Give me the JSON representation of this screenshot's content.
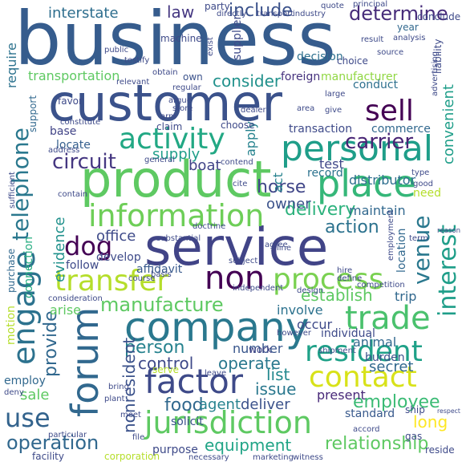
{
  "words": [
    {
      "text": "business",
      "color": "#365c8d"
    },
    {
      "text": "customer",
      "color": "#3b528b"
    },
    {
      "text": "service",
      "color": "#414487"
    },
    {
      "text": "product",
      "color": "#5ec962"
    },
    {
      "text": "company",
      "color": "#2a788e"
    },
    {
      "text": "jurisdiction",
      "color": "#5ec962"
    },
    {
      "text": "forum",
      "color": "#31688e"
    },
    {
      "text": "personal",
      "color": "#1f9e89"
    },
    {
      "text": "place",
      "color": "#35b779"
    },
    {
      "text": "information",
      "color": "#6ece58"
    },
    {
      "text": "telephone",
      "color": "#2a788e"
    },
    {
      "text": "engage",
      "color": "#2c728e"
    },
    {
      "text": "activity",
      "color": "#22a884"
    },
    {
      "text": "process",
      "color": "#7ad151"
    },
    {
      "text": "transfer",
      "color": "#b5de2b"
    },
    {
      "text": "contact",
      "color": "#d8e219"
    },
    {
      "text": "trade",
      "color": "#4ac16d"
    },
    {
      "text": "factor",
      "color": "#3e4a89"
    },
    {
      "text": "resident",
      "color": "#1fa188"
    },
    {
      "text": "manufacture",
      "color": "#5ec962"
    },
    {
      "text": "non",
      "color": "#440154"
    },
    {
      "text": "sell",
      "color": "#440154"
    },
    {
      "text": "venue",
      "color": "#2a788e"
    },
    {
      "text": "interest",
      "color": "#1f9e89"
    },
    {
      "text": "dog",
      "color": "#440154"
    },
    {
      "text": "operation",
      "color": "#31688e"
    },
    {
      "text": "use",
      "color": "#33638d"
    },
    {
      "text": "circuit",
      "color": "#453781"
    },
    {
      "text": "delivery",
      "color": "#2db27d"
    },
    {
      "text": "carrier",
      "color": "#482475"
    },
    {
      "text": "establish",
      "color": "#5ec962"
    },
    {
      "text": "control",
      "color": "#3e4989"
    },
    {
      "text": "operate",
      "color": "#2a788e"
    },
    {
      "text": "person",
      "color": "#26828e"
    },
    {
      "text": "employee",
      "color": "#3bbb75"
    },
    {
      "text": "relationship",
      "color": "#5ec962"
    },
    {
      "text": "equipment",
      "color": "#20a486"
    },
    {
      "text": "consider",
      "color": "#21918c"
    },
    {
      "text": "determine",
      "color": "#472c7a"
    },
    {
      "text": "include",
      "color": "#3b528b"
    },
    {
      "text": "interstate",
      "color": "#2e6e8e"
    },
    {
      "text": "law",
      "color": "#453781"
    },
    {
      "text": "convenient",
      "color": "#1f9e89"
    },
    {
      "text": "require",
      "color": "#2c728e"
    },
    {
      "text": "transportation",
      "color": "#5ec962"
    },
    {
      "text": "foreign",
      "color": "#46327e"
    },
    {
      "text": "manufacturer",
      "color": "#90d743"
    },
    {
      "text": "horse",
      "color": "#404688"
    },
    {
      "text": "owner",
      "color": "#3b528b"
    },
    {
      "text": "maintain",
      "color": "#31688e"
    },
    {
      "text": "action",
      "color": "#2c728e"
    },
    {
      "text": "office",
      "color": "#3e4a89"
    },
    {
      "text": "evidence",
      "color": "#21918c"
    },
    {
      "text": "connection",
      "color": "#27ad81"
    },
    {
      "text": "provide",
      "color": "#31688e"
    },
    {
      "text": "nonresident",
      "color": "#3b528b"
    },
    {
      "text": "issue",
      "color": "#2a788e"
    },
    {
      "text": "list",
      "color": "#23888e"
    },
    {
      "text": "secret",
      "color": "#31688e"
    },
    {
      "text": "animal",
      "color": "#31688e"
    },
    {
      "text": "food",
      "color": "#31688e"
    },
    {
      "text": "agent",
      "color": "#26828e"
    },
    {
      "text": "deliver",
      "color": "#3b528b"
    },
    {
      "text": "present",
      "color": "#472878"
    },
    {
      "text": "standard",
      "color": "#38598c"
    },
    {
      "text": "long",
      "color": "#fde725"
    },
    {
      "text": "sale",
      "color": "#5ec962"
    },
    {
      "text": "employ",
      "color": "#31688e"
    },
    {
      "text": "supply",
      "color": "#1f9e89"
    },
    {
      "text": "boat",
      "color": "#414487"
    },
    {
      "text": "test",
      "color": "#3f4788"
    },
    {
      "text": "distributor",
      "color": "#2e6e8e"
    },
    {
      "text": "record",
      "color": "#2c728e"
    },
    {
      "text": "transaction",
      "color": "#3e4a89"
    },
    {
      "text": "commerce",
      "color": "#31688e"
    },
    {
      "text": "base",
      "color": "#414487"
    },
    {
      "text": "locate",
      "color": "#355f8d"
    },
    {
      "text": "apply",
      "color": "#26828e"
    },
    {
      "text": "act",
      "color": "#26828e"
    },
    {
      "text": "involve",
      "color": "#2c728e"
    },
    {
      "text": "occur",
      "color": "#3e4a89"
    },
    {
      "text": "number",
      "color": "#39568c"
    },
    {
      "text": "work",
      "color": "#414487"
    },
    {
      "text": "solicit",
      "color": "#3b528b"
    },
    {
      "text": "individual",
      "color": "#3e4a89"
    },
    {
      "text": "burden",
      "color": "#3b528b"
    },
    {
      "text": "trip",
      "color": "#31688e"
    },
    {
      "text": "follow",
      "color": "#3e4a89"
    },
    {
      "text": "develop",
      "color": "#3e4a89"
    },
    {
      "text": "affidavit",
      "color": "#38598c"
    },
    {
      "text": "conduct",
      "color": "#2d708e"
    },
    {
      "text": "machine",
      "color": "#3e4a89"
    },
    {
      "text": "supplier",
      "color": "#3e4a89"
    },
    {
      "text": "decision",
      "color": "#2d708e"
    },
    {
      "text": "own",
      "color": "#3b528b"
    },
    {
      "text": "choice",
      "color": "#3e4a89"
    },
    {
      "text": "party",
      "color": "#3e4a89"
    },
    {
      "text": "year",
      "color": "#31688e"
    },
    {
      "text": "conclude",
      "color": "#3e4a89"
    },
    {
      "text": "advertising",
      "color": "#3e4a89"
    },
    {
      "text": "liability",
      "color": "#3e4a89"
    },
    {
      "text": "motion",
      "color": "#b5de2b"
    },
    {
      "text": "purchase",
      "color": "#31688e"
    },
    {
      "text": "arise",
      "color": "#5ec962"
    },
    {
      "text": "claim",
      "color": "#3e4a89"
    },
    {
      "text": "choose",
      "color": "#3e4a89"
    },
    {
      "text": "support",
      "color": "#31688e"
    },
    {
      "text": "favor",
      "color": "#3e4a89"
    },
    {
      "text": "address",
      "color": "#3e4a89"
    },
    {
      "text": "purpose",
      "color": "#3e4a89"
    },
    {
      "text": "facility",
      "color": "#3e4a89"
    },
    {
      "text": "corporation",
      "color": "#b5de2b"
    },
    {
      "text": "necessary",
      "color": "#3e4a89"
    },
    {
      "text": "marketing",
      "color": "#3e4a89"
    },
    {
      "text": "witness",
      "color": "#3e4a89"
    },
    {
      "text": "reside",
      "color": "#3e4a89"
    },
    {
      "text": "gas",
      "color": "#3e4a89"
    },
    {
      "text": "ship",
      "color": "#3e4a89"
    },
    {
      "text": "need",
      "color": "#b5de2b"
    },
    {
      "text": "good",
      "color": "#3e4a89"
    },
    {
      "text": "location",
      "color": "#31688e"
    },
    {
      "text": "hire",
      "color": "#3e4a89"
    },
    {
      "text": "define",
      "color": "#3e4a89"
    },
    {
      "text": "competition",
      "color": "#3e4a89"
    },
    {
      "text": "however",
      "color": "#3e4a89"
    },
    {
      "text": "shipment",
      "color": "#3e4a89"
    },
    {
      "text": "accord",
      "color": "#3e4a89"
    },
    {
      "text": "independent",
      "color": "#3e4a89"
    },
    {
      "text": "subject",
      "color": "#3e4a89"
    },
    {
      "text": "agree",
      "color": "#3e4a89"
    },
    {
      "text": "line",
      "color": "#3e4a89"
    },
    {
      "text": "doctrine",
      "color": "#3e4a89"
    },
    {
      "text": "cite",
      "color": "#3e4a89"
    },
    {
      "text": "contend",
      "color": "#3e4a89"
    },
    {
      "text": "general",
      "color": "#3e4a89"
    },
    {
      "text": "serve",
      "color": "#b5de2b"
    },
    {
      "text": "leave",
      "color": "#3e4a89"
    },
    {
      "text": "bring",
      "color": "#3e4a89"
    },
    {
      "text": "plant",
      "color": "#3e4a89"
    },
    {
      "text": "meet",
      "color": "#3e4a89"
    },
    {
      "text": "particular",
      "color": "#3e4a89"
    },
    {
      "text": "file",
      "color": "#3e4a89"
    },
    {
      "text": "contain",
      "color": "#3e4a89"
    },
    {
      "text": "arm",
      "color": "#3e4a89"
    },
    {
      "text": "argue",
      "color": "#3e4a89"
    },
    {
      "text": "store",
      "color": "#3e4a89"
    },
    {
      "text": "obtain",
      "color": "#3e4a89"
    },
    {
      "text": "regular",
      "color": "#3e4a89"
    },
    {
      "text": "relevant",
      "color": "#3e4a89"
    },
    {
      "text": "public",
      "color": "#3e4a89"
    },
    {
      "text": "testify",
      "color": "#3e4a89"
    },
    {
      "text": "exist",
      "color": "#3e4a89"
    },
    {
      "text": "directly",
      "color": "#3e4a89"
    },
    {
      "text": "transport",
      "color": "#3e4a89"
    },
    {
      "text": "industry",
      "color": "#3e4a89"
    },
    {
      "text": "quote",
      "color": "#3e4a89"
    },
    {
      "text": "principal",
      "color": "#3e4a89"
    },
    {
      "text": "analysis",
      "color": "#3e4a89"
    },
    {
      "text": "result",
      "color": "#3e4a89"
    },
    {
      "text": "source",
      "color": "#3e4a89"
    },
    {
      "text": "large",
      "color": "#3e4a89"
    },
    {
      "text": "area",
      "color": "#3e4a89"
    },
    {
      "text": "give",
      "color": "#3e4a89"
    },
    {
      "text": "dealer",
      "color": "#3e4a89"
    },
    {
      "text": "substantial",
      "color": "#3e4a89"
    },
    {
      "text": "course",
      "color": "#3e4a89"
    },
    {
      "text": "basis",
      "color": "#3e4a89"
    },
    {
      "text": "type",
      "color": "#3e4a89"
    },
    {
      "text": "respect",
      "color": "#3e4a89"
    },
    {
      "text": "design",
      "color": "#3e4a89"
    },
    {
      "text": "consideration",
      "color": "#3e4a89"
    },
    {
      "text": "sufficient",
      "color": "#3e4a89"
    },
    {
      "text": "constitute",
      "color": "#3e4a89"
    },
    {
      "text": "employment",
      "color": "#3e4a89"
    },
    {
      "text": "deny",
      "color": "#3e4a89"
    },
    {
      "text": "term",
      "color": "#3e4a89"
    },
    {
      "text": "reason",
      "color": "#3e4a89"
    }
  ]
}
